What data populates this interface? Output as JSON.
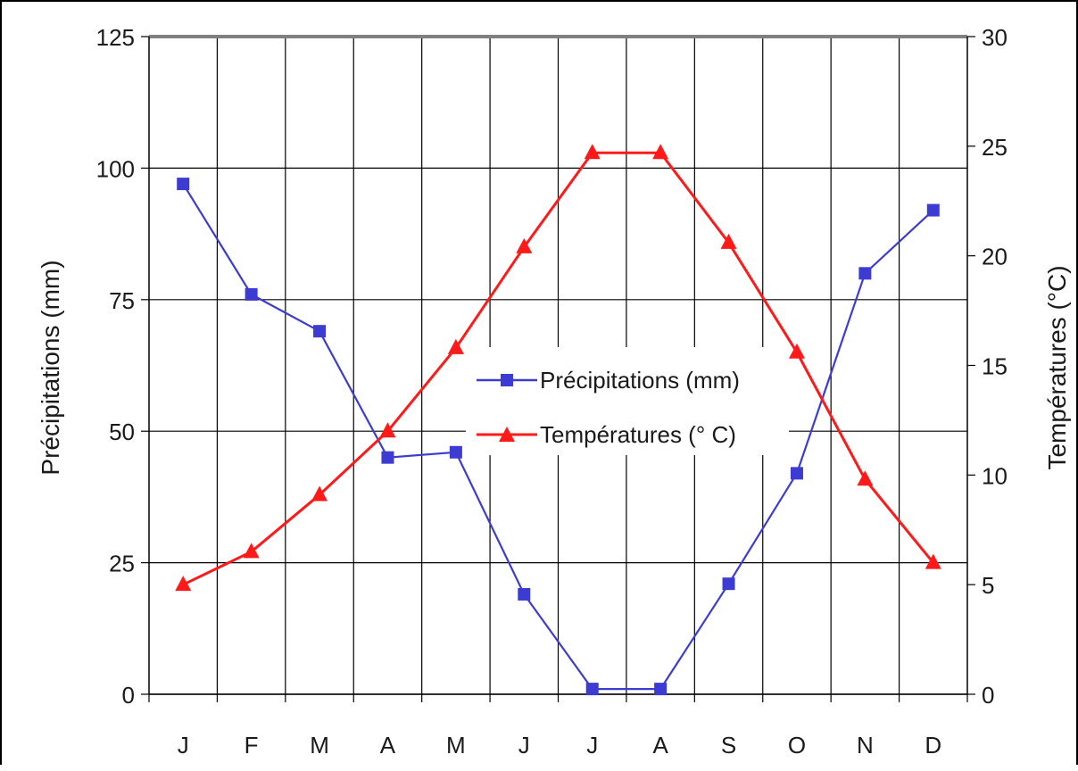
{
  "chart_data": {
    "type": "line",
    "categories": [
      "J",
      "F",
      "M",
      "A",
      "M",
      "J",
      "J",
      "A",
      "S",
      "O",
      "N",
      "D"
    ],
    "series": [
      {
        "name": "Précipitations (mm)",
        "axis": "left",
        "marker": "square",
        "color": "#3c3cd2",
        "values": [
          97,
          76,
          69,
          45,
          46,
          19,
          1,
          1,
          21,
          42,
          80,
          92
        ]
      },
      {
        "name": "Températures (° C)",
        "axis": "right",
        "marker": "triangle",
        "color": "#ff1a1a",
        "values": [
          5,
          6.5,
          9.1,
          12,
          15.8,
          20.4,
          24.7,
          24.7,
          20.6,
          15.6,
          9.8,
          6
        ]
      }
    ],
    "ylabel": "Précipitations (mm)",
    "y2label": "Températures (°C)",
    "ylim": [
      0,
      125
    ],
    "y2lim": [
      0,
      30
    ],
    "yticks": [
      "0",
      "25",
      "50",
      "75",
      "100",
      "125"
    ],
    "y2ticks": [
      "0",
      "5",
      "10",
      "15",
      "20",
      "25",
      "30"
    ],
    "grid": true,
    "legend_position": "center"
  }
}
